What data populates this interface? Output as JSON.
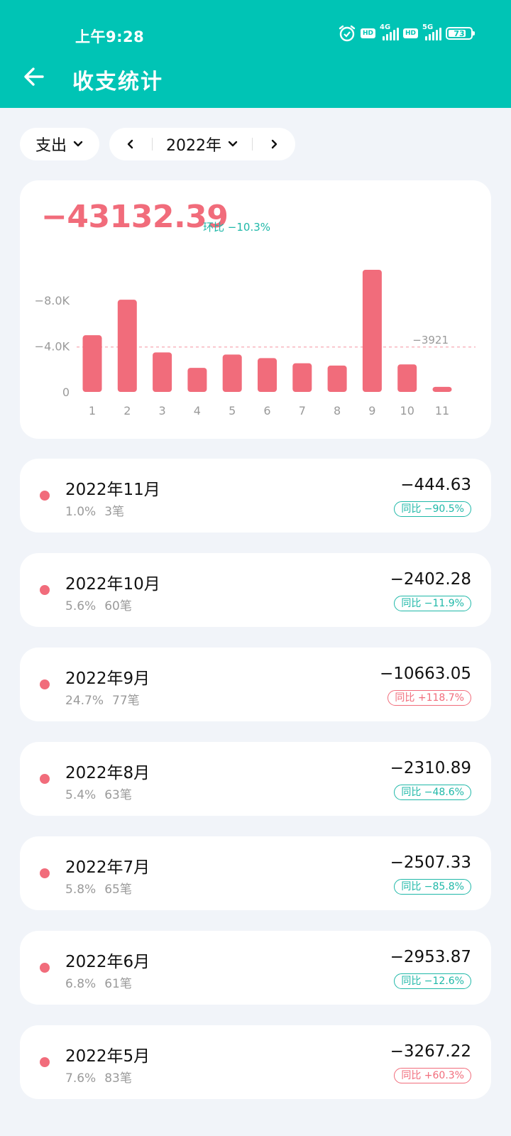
{
  "status_bar": {
    "time": "上午9:28",
    "network_1": "4G",
    "network_2": "5G",
    "hd": "HD",
    "battery": "73"
  },
  "header": {
    "title": "收支统计"
  },
  "filters": {
    "type": "支出",
    "year": "2022年"
  },
  "summary": {
    "total": "−43132.39",
    "mom_label": "环比",
    "mom_value": "−10.3%"
  },
  "colors": {
    "brand": "#00c4b5",
    "expense": "#f16c7b",
    "decrease": "#1fb8a8",
    "background": "#f1f4f9"
  },
  "chart_data": {
    "type": "bar",
    "categories": [
      "1",
      "2",
      "3",
      "4",
      "5",
      "6",
      "7",
      "8",
      "9",
      "10",
      "11"
    ],
    "values": [
      -4950,
      -8050,
      -3450,
      -2100,
      -3260,
      -2950,
      -2500,
      -2300,
      -10663.05,
      -2402.28,
      -444.63
    ],
    "y_ticks": [
      {
        "value": 0,
        "label": "0"
      },
      {
        "value": -4000,
        "label": "−4.0K"
      },
      {
        "value": -8000,
        "label": "−8.0K"
      }
    ],
    "ylim": [
      0,
      -10663.05
    ],
    "average": {
      "value": -3921,
      "label": "−3921"
    },
    "grid": false,
    "bar_color": "#f16c7b"
  },
  "months": [
    {
      "title": "2022年11月",
      "share": "1.0%",
      "count": "3笔",
      "amount": "−444.63",
      "yoy_label": "同比",
      "yoy": "−90.5%",
      "trend": "down"
    },
    {
      "title": "2022年10月",
      "share": "5.6%",
      "count": "60笔",
      "amount": "−2402.28",
      "yoy_label": "同比",
      "yoy": "−11.9%",
      "trend": "down"
    },
    {
      "title": "2022年9月",
      "share": "24.7%",
      "count": "77笔",
      "amount": "−10663.05",
      "yoy_label": "同比",
      "yoy": "+118.7%",
      "trend": "up"
    },
    {
      "title": "2022年8月",
      "share": "5.4%",
      "count": "63笔",
      "amount": "−2310.89",
      "yoy_label": "同比",
      "yoy": "−48.6%",
      "trend": "down"
    },
    {
      "title": "2022年7月",
      "share": "5.8%",
      "count": "65笔",
      "amount": "−2507.33",
      "yoy_label": "同比",
      "yoy": "−85.8%",
      "trend": "down"
    },
    {
      "title": "2022年6月",
      "share": "6.8%",
      "count": "61笔",
      "amount": "−2953.87",
      "yoy_label": "同比",
      "yoy": "−12.6%",
      "trend": "down"
    },
    {
      "title": "2022年5月",
      "share": "7.6%",
      "count": "83笔",
      "amount": "−3267.22",
      "yoy_label": "同比",
      "yoy": "+60.3%",
      "trend": "up"
    }
  ]
}
